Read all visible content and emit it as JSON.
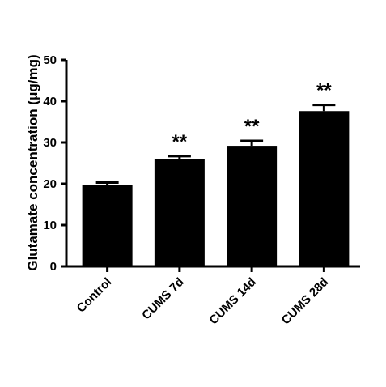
{
  "chart_data": {
    "type": "bar",
    "title": "",
    "xlabel": "",
    "ylabel": "Glutamate concentration (μg/mg)",
    "ylim": [
      0,
      50
    ],
    "yticks": [
      0,
      10,
      20,
      30,
      40,
      50
    ],
    "categories": [
      "Control",
      "CUMS 7d",
      "CUMS 14d",
      "CUMS 28d"
    ],
    "values": [
      19.7,
      25.9,
      29.2,
      37.6
    ],
    "errors": [
      0.6,
      0.8,
      1.2,
      1.5
    ],
    "significance": [
      "",
      "**",
      "**",
      "**"
    ],
    "grid": false,
    "bar_color": "#000000"
  }
}
